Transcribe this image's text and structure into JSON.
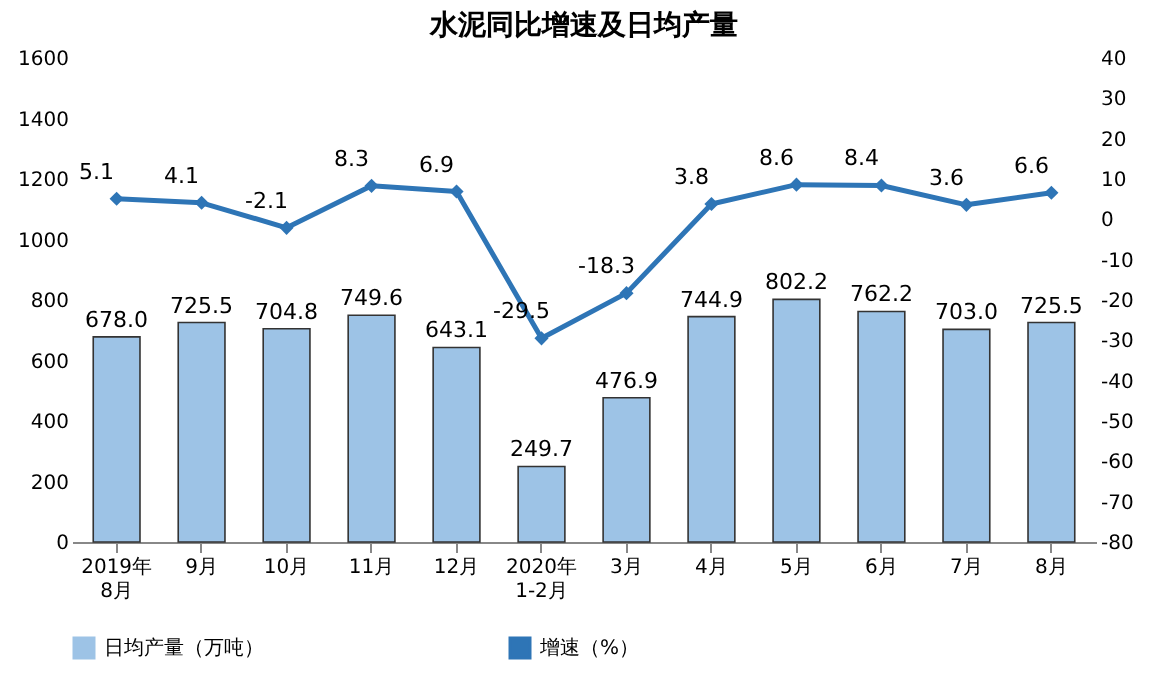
{
  "chart_data": {
    "type": "bar",
    "title": "水泥同比增速及日均产量",
    "categories": [
      "2019年\n8月",
      "9月",
      "10月",
      "11月",
      "12月",
      "2020年\n1-2月",
      "3月",
      "4月",
      "5月",
      "6月",
      "7月",
      "8月"
    ],
    "series": [
      {
        "name": "日均产量（万吨）",
        "color": "#9dc3e6",
        "values": [
          678.0,
          725.5,
          704.8,
          749.6,
          643.1,
          249.7,
          476.9,
          744.9,
          802.2,
          762.2,
          703.0,
          725.5
        ],
        "value_labels": [
          "678.0",
          "725.5",
          "704.8",
          "749.6",
          "643.1",
          "249.7",
          "476.9",
          "744.9",
          "802.2",
          "762.2",
          "703.0",
          "725.5"
        ]
      },
      {
        "name": "增速（%）",
        "type": "line",
        "axis": "y2",
        "color": "#2e75b6",
        "marker": "diamond",
        "values": [
          5.1,
          4.1,
          -2.1,
          8.3,
          6.9,
          -29.5,
          -18.3,
          3.8,
          8.6,
          8.4,
          3.6,
          6.6
        ],
        "value_labels": [
          "5.1",
          "4.1",
          "-2.1",
          "8.3",
          "6.9",
          "-29.5",
          "-18.3",
          "3.8",
          "8.6",
          "8.4",
          "3.6",
          "6.6"
        ]
      }
    ],
    "ylim": [
      0,
      1600
    ],
    "yticks": [
      0,
      200,
      400,
      600,
      800,
      1000,
      1200,
      1400,
      1600
    ],
    "y2lim": [
      -80,
      40
    ],
    "y2ticks": [
      -80,
      -70,
      -60,
      -50,
      -40,
      -30,
      -20,
      -10,
      0,
      10,
      20,
      30,
      40
    ],
    "legend": "bottom",
    "grid": false
  }
}
